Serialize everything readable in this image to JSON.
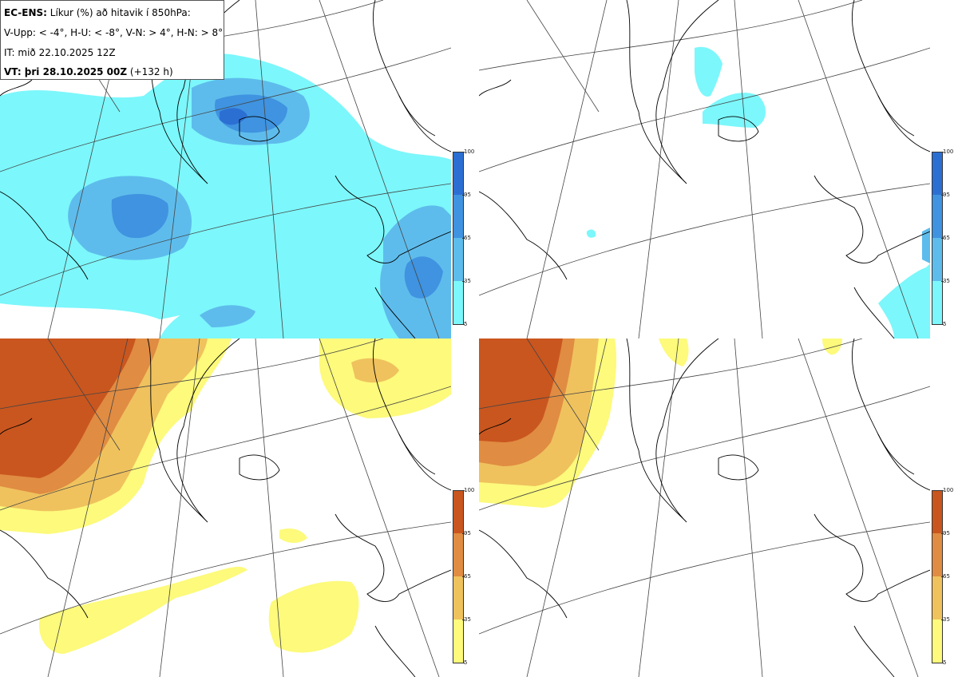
{
  "header": {
    "model": "EC-ENS:",
    "title_rest": "Líkur (%) að hitavik í 850hPa:",
    "categories_line": "V-Upp: < -4°, H-U: < -8°, V-N: > 4°, H-N: > 8°",
    "init_time": "IT: mið 22.10.2025 12Z",
    "valid_label": "VT: þri 28.10.2025 00Z",
    "valid_lead": "(+132 h)"
  },
  "panels": [
    {
      "id": "v-upp",
      "palette": "blue"
    },
    {
      "id": "h-u",
      "palette": "blue"
    },
    {
      "id": "v-n",
      "palette": "orange"
    },
    {
      "id": "h-n",
      "palette": "orange"
    }
  ],
  "colorbars": {
    "blue": {
      "ticks": [
        "100",
        "95",
        "65",
        "35",
        "5"
      ],
      "colors": [
        "#2c6fd3",
        "#3f93e0",
        "#5ebcec",
        "#7cf7fb"
      ]
    },
    "orange": {
      "ticks": [
        "100",
        "95",
        "65",
        "35",
        "5"
      ],
      "colors": [
        "#c9561f",
        "#e08c42",
        "#efc25e",
        "#fdfa7c"
      ]
    }
  }
}
